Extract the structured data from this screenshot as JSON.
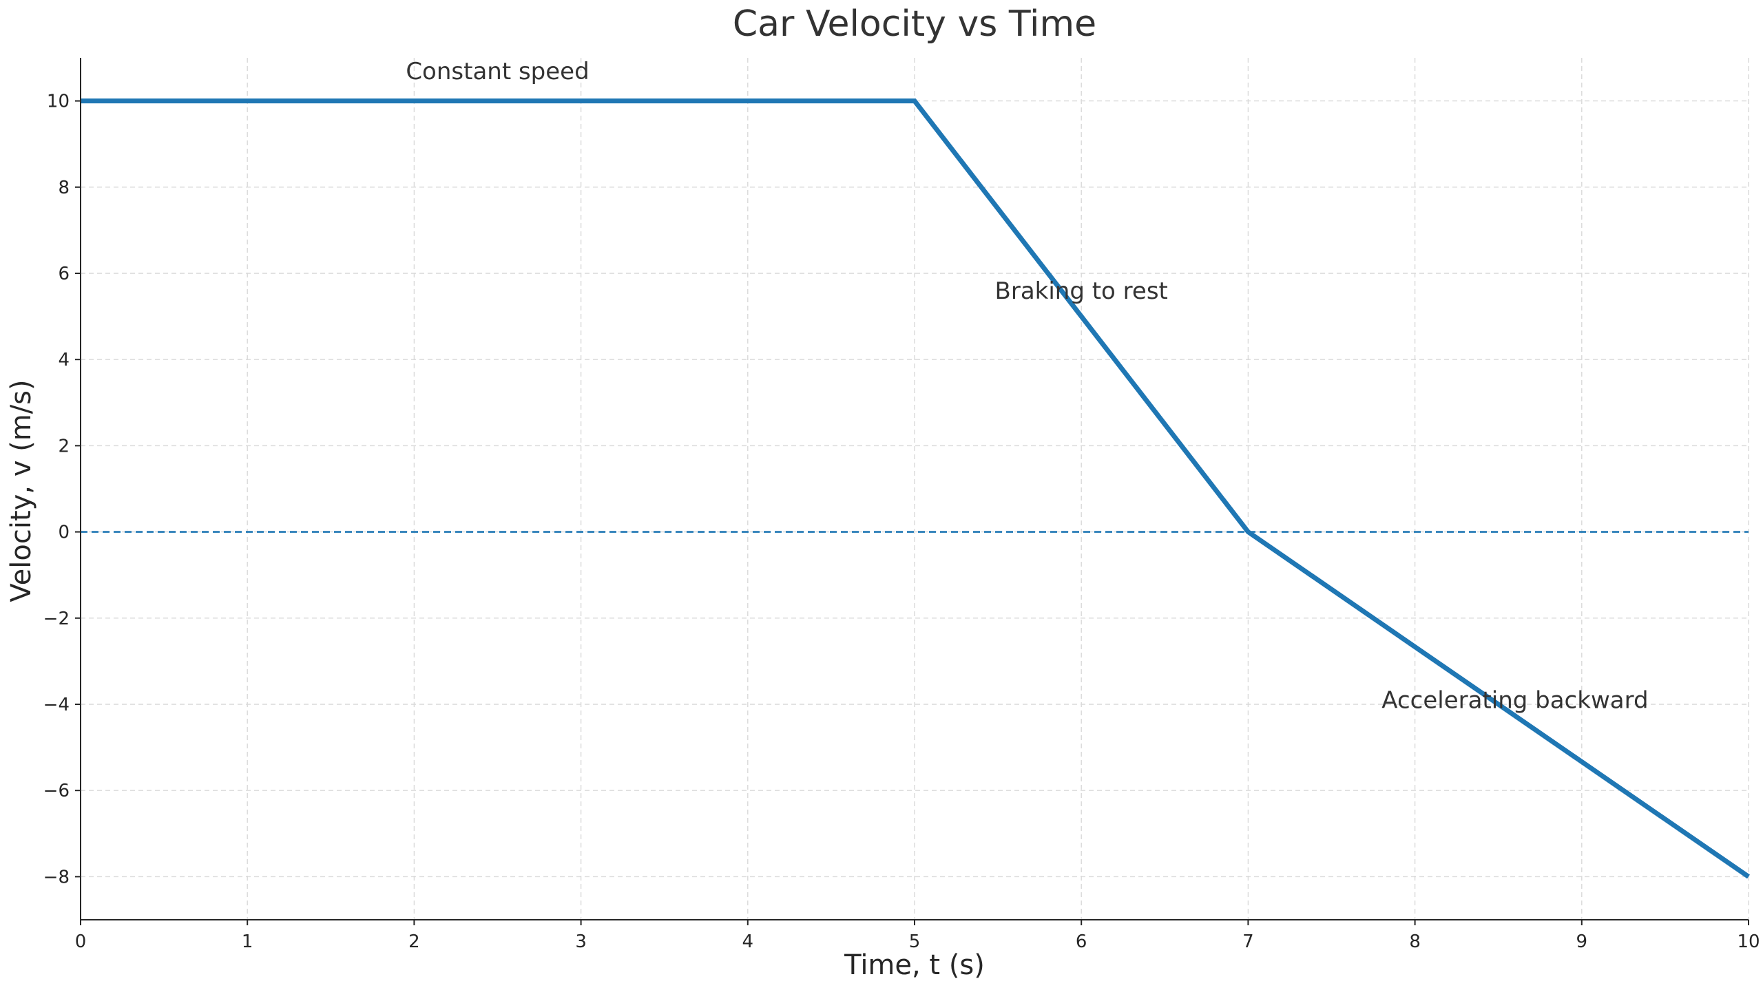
{
  "colors": {
    "series": "#1f77b4",
    "zero_line": "#1f77b4",
    "grid": "#d9d9d9",
    "text": "#333333"
  },
  "chart_data": {
    "type": "line",
    "title": "Car Velocity vs Time",
    "xlabel": "Time, t (s)",
    "ylabel": "Velocity, v (m/s)",
    "xlim": [
      0,
      10
    ],
    "ylim": [
      -9,
      11
    ],
    "xticks": [
      0,
      1,
      2,
      3,
      4,
      5,
      6,
      7,
      8,
      9,
      10
    ],
    "xtick_labels": [
      "0",
      "1",
      "2",
      "3",
      "4",
      "5",
      "6",
      "7",
      "8",
      "9",
      "10"
    ],
    "yticks": [
      -8,
      -6,
      -4,
      -2,
      0,
      2,
      4,
      6,
      8,
      10
    ],
    "ytick_labels": [
      "−8",
      "−6",
      "−4",
      "−2",
      "0",
      "2",
      "4",
      "6",
      "8",
      "10"
    ],
    "grid": true,
    "series": [
      {
        "x": [
          0,
          5,
          7,
          10
        ],
        "y": [
          10,
          10,
          0,
          -8
        ]
      }
    ],
    "reference_lines": [
      {
        "orientation": "horizontal",
        "y": 0,
        "style": "dashed"
      }
    ],
    "annotations": [
      {
        "text": "Constant speed",
        "x": 2.5,
        "y": 10.7
      },
      {
        "text": "Braking to rest",
        "x": 6.0,
        "y": 5.6
      },
      {
        "text": "Accelerating backward",
        "x": 8.6,
        "y": -3.9
      }
    ]
  }
}
